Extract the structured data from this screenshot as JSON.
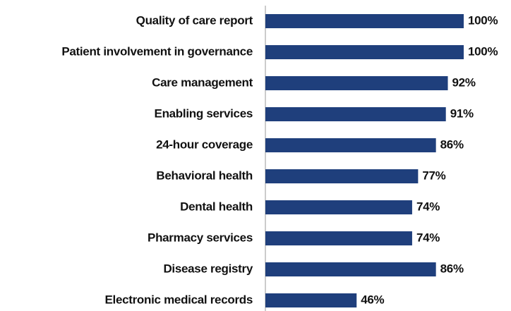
{
  "chart_data": {
    "type": "bar",
    "orientation": "horizontal",
    "categories": [
      "Quality of care report",
      "Patient involvement in governance",
      "Care management",
      "Enabling services",
      "24-hour coverage",
      "Behavioral health",
      "Dental health",
      "Pharmacy services",
      "Disease registry",
      "Electronic medical records"
    ],
    "values": [
      100,
      100,
      92,
      91,
      86,
      77,
      74,
      74,
      86,
      46
    ],
    "value_labels": [
      "100%",
      "100%",
      "92%",
      "91%",
      "86%",
      "77%",
      "74%",
      "74%",
      "86%",
      "46%"
    ],
    "color": "#1f3f7c",
    "xlim": [
      0,
      100
    ]
  }
}
